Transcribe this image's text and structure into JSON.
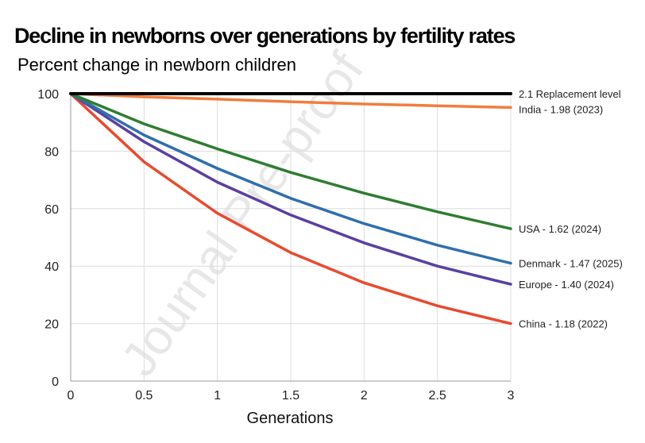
{
  "watermark": "Journal Pre-proof",
  "chart_data": {
    "type": "line",
    "title": "Decline in newborns over generations by fertility rates",
    "subtitle": "Percent change in newborn children",
    "xlabel": "Generations",
    "ylabel": "",
    "xlim": [
      0,
      3
    ],
    "ylim": [
      0,
      100
    ],
    "xticks": [
      0,
      0.5,
      1,
      1.5,
      2,
      2.5,
      3
    ],
    "xtick_labels": [
      "0",
      "0.5",
      "1",
      "1.5",
      "2",
      "2.5",
      "3"
    ],
    "yticks": [
      0,
      20,
      40,
      60,
      80,
      100
    ],
    "ytick_labels": [
      "0",
      "20",
      "40",
      "60",
      "80",
      "100"
    ],
    "grid": true,
    "legend": "inline-right",
    "x": [
      0,
      0.5,
      1,
      1.5,
      2,
      2.5,
      3
    ],
    "series": [
      {
        "name": "2.1 Replacement level",
        "color": "#000000",
        "values": [
          100,
          100,
          100,
          100,
          100,
          100,
          100
        ]
      },
      {
        "name": "India - 1.98 (2023)",
        "color": "#f07d3f",
        "values": [
          100,
          98.9,
          98.1,
          97.2,
          96.4,
          95.8,
          95.2
        ]
      },
      {
        "name": "USA - 1.62 (2024)",
        "color": "#2e7d32",
        "values": [
          100,
          89.5,
          80.8,
          72.6,
          65.4,
          58.9,
          53.0
        ]
      },
      {
        "name": "Denmark - 1.47 (2025)",
        "color": "#2f6fab",
        "values": [
          100,
          85.6,
          74.0,
          63.6,
          54.8,
          47.3,
          41.0
        ]
      },
      {
        "name": "Europe - 1.40 (2024)",
        "color": "#5a3fa0",
        "values": [
          100,
          83.3,
          69.2,
          57.8,
          48.1,
          40.0,
          33.7
        ]
      },
      {
        "name": "China - 1.18 (2022)",
        "color": "#e84a2f",
        "values": [
          100,
          76.3,
          58.4,
          44.7,
          34.2,
          26.2,
          20.0
        ]
      }
    ]
  }
}
